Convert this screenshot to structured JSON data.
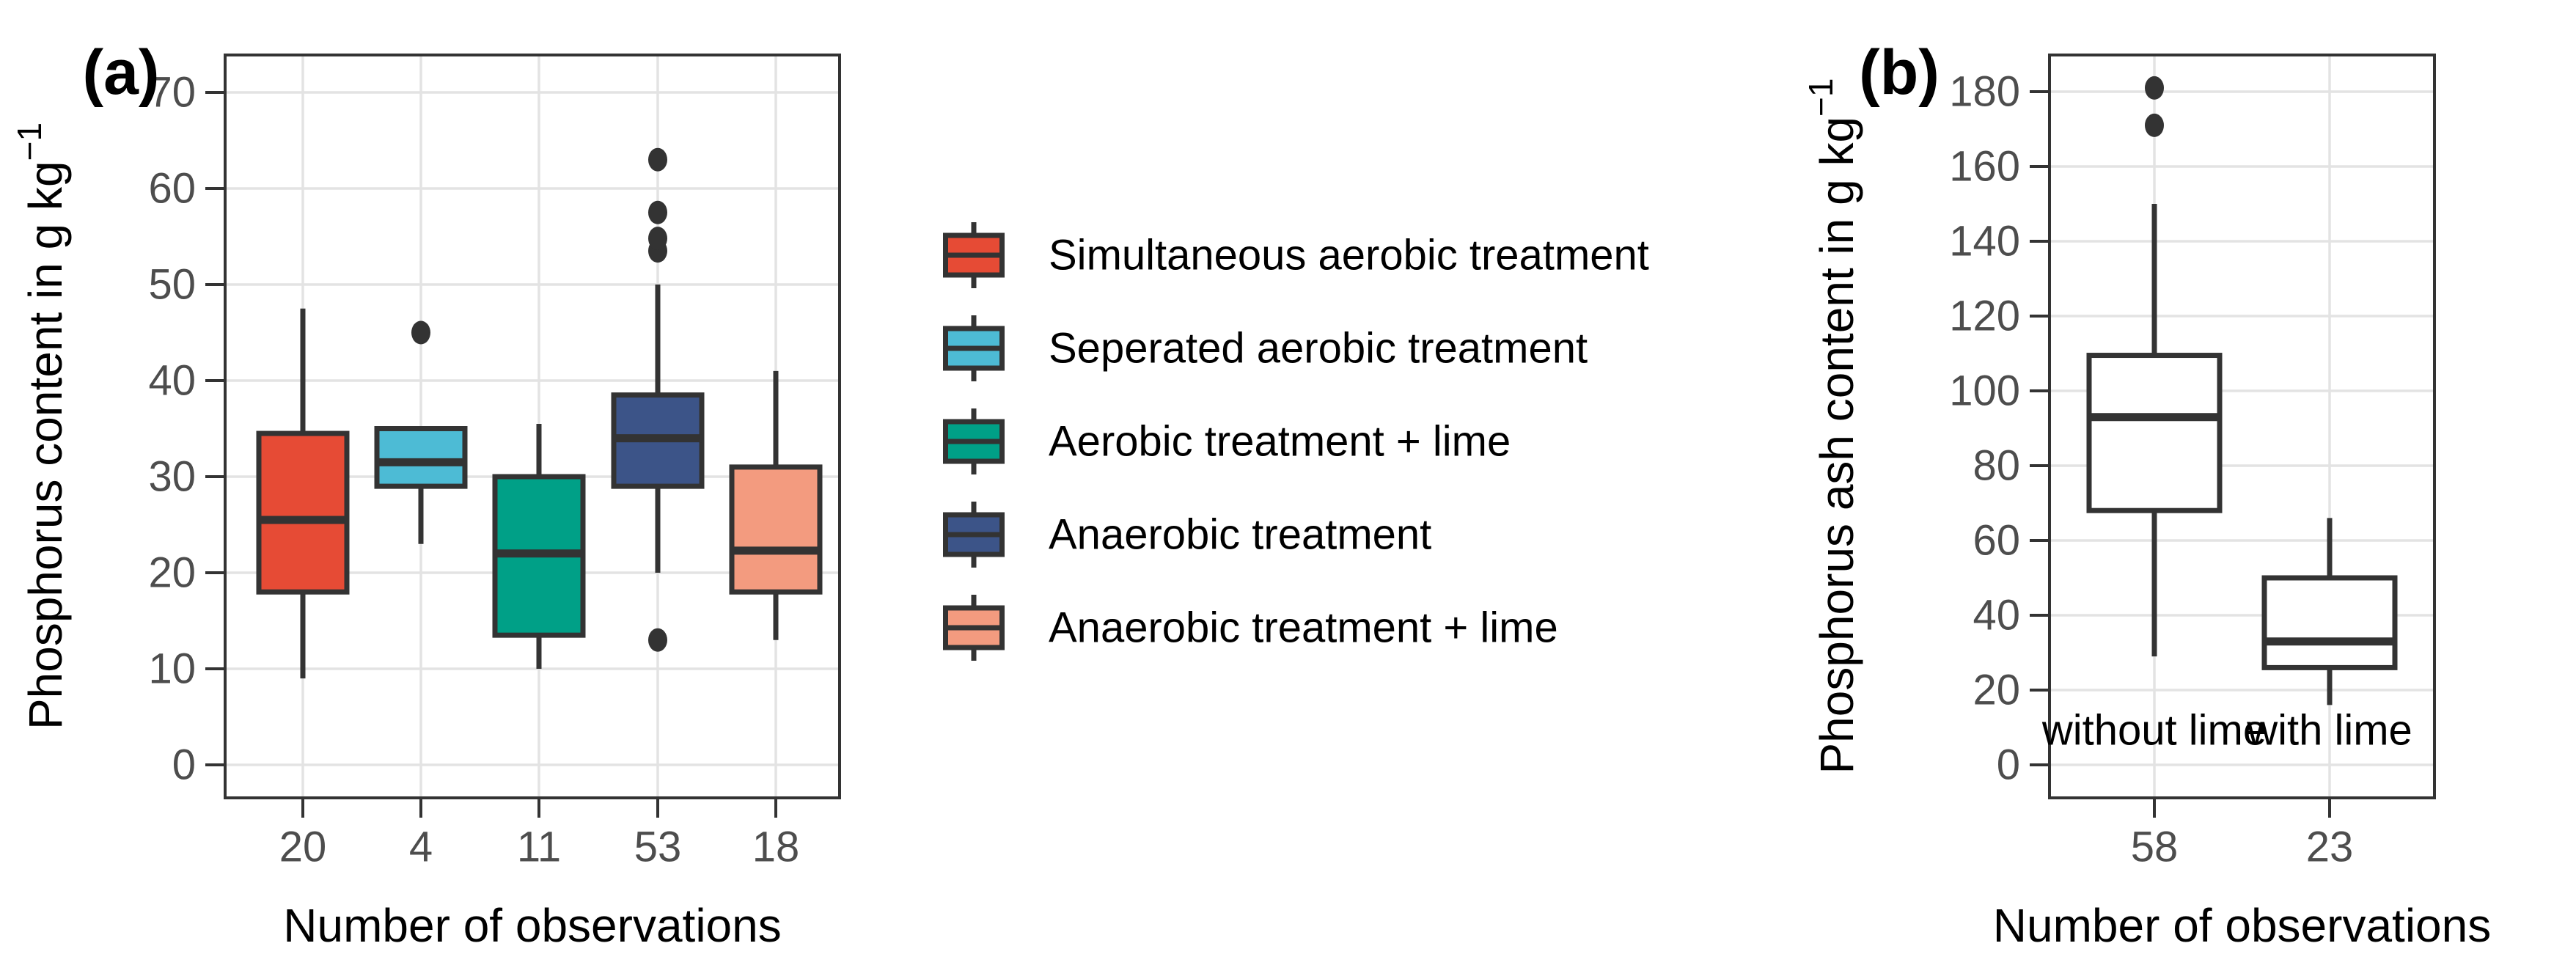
{
  "chart_data": {
    "type": "box",
    "figure_tags": [
      "(a)",
      "(b)"
    ],
    "panels": [
      {
        "tag": "(a)",
        "ylabel": "Phosphorus content in g kg",
        "ylabel_superscript": "−1",
        "xlabel": "Number of observations",
        "y_ticks": [
          0,
          10,
          20,
          30,
          40,
          50,
          60,
          70
        ],
        "ylim": [
          -3.4,
          73.9
        ],
        "x_tick_labels": [
          "20",
          "4",
          "11",
          "53",
          "18"
        ],
        "grid": "major-only",
        "boxes": [
          {
            "name": "Simultaneous aerobic treatment",
            "n_observations": 20,
            "color": "#E64B35",
            "whisker_low": 9,
            "q1": 18,
            "median": 25.5,
            "q3": 34.5,
            "whisker_high": 47.5,
            "outliers": []
          },
          {
            "name": "Seperated aerobic treatment",
            "n_observations": 4,
            "color": "#4DBBD5",
            "whisker_low": 23,
            "q1": 29,
            "median": 31.5,
            "q3": 35,
            "whisker_high": 35,
            "outliers": [
              45
            ]
          },
          {
            "name": "Aerobic treatment + lime",
            "n_observations": 11,
            "color": "#00A087",
            "whisker_low": 10,
            "q1": 13.5,
            "median": 22,
            "q3": 30,
            "whisker_high": 35.5,
            "outliers": []
          },
          {
            "name": "Anaerobic treatment",
            "n_observations": 53,
            "color": "#3C5488",
            "whisker_low": 20,
            "q1": 29,
            "median": 34,
            "q3": 38.5,
            "whisker_high": 50,
            "outliers": [
              13,
              53.5,
              54.8,
              57.5,
              63
            ]
          },
          {
            "name": "Anaerobic treatment + lime",
            "n_observations": 18,
            "color": "#F39B7F",
            "whisker_low": 13,
            "q1": 18,
            "median": 22.3,
            "q3": 31,
            "whisker_high": 41,
            "outliers": []
          }
        ],
        "annotations": []
      },
      {
        "tag": "(b)",
        "ylabel": "Phosphorus ash content in g kg",
        "ylabel_superscript": "−1",
        "xlabel": "Number of observations",
        "y_ticks": [
          0,
          20,
          40,
          60,
          80,
          100,
          120,
          140,
          160,
          180
        ],
        "ylim": [
          -8.8,
          189.8
        ],
        "x_tick_labels": [
          "58",
          "23"
        ],
        "grid": "major-only",
        "boxes": [
          {
            "name": "without lime",
            "n_observations": 58,
            "color": "#FFFFFF",
            "whisker_low": 29,
            "q1": 68,
            "median": 93,
            "q3": 109.5,
            "whisker_high": 150,
            "outliers": [
              171,
              181
            ]
          },
          {
            "name": "with lime",
            "n_observations": 23,
            "color": "#FFFFFF",
            "whisker_low": 16,
            "q1": 26,
            "median": 33,
            "q3": 50,
            "whisker_high": 66,
            "outliers": []
          }
        ],
        "annotations": [
          {
            "text": "without lime",
            "category_index": 0,
            "value": 9.2
          },
          {
            "text": "with lime",
            "category_index": 1,
            "value": 9.2
          }
        ]
      }
    ],
    "legend": {
      "position": "middle-of-figure",
      "entries": [
        {
          "label": "Simultaneous aerobic treatment",
          "color": "#E64B35"
        },
        {
          "label": "Seperated aerobic treatment",
          "color": "#4DBBD5"
        },
        {
          "label": "Aerobic treatment + lime",
          "color": "#00A087"
        },
        {
          "label": "Anaerobic treatment",
          "color": "#3C5488"
        },
        {
          "label": "Anaerobic treatment + lime",
          "color": "#F39B7F"
        }
      ]
    },
    "colors": {
      "panel_border": "#333333",
      "box_border": "#333333",
      "gridline": "#E3E3E3",
      "tick_label": "#4D4D4D",
      "text": "#000000",
      "background": "#FFFFFF"
    }
  }
}
